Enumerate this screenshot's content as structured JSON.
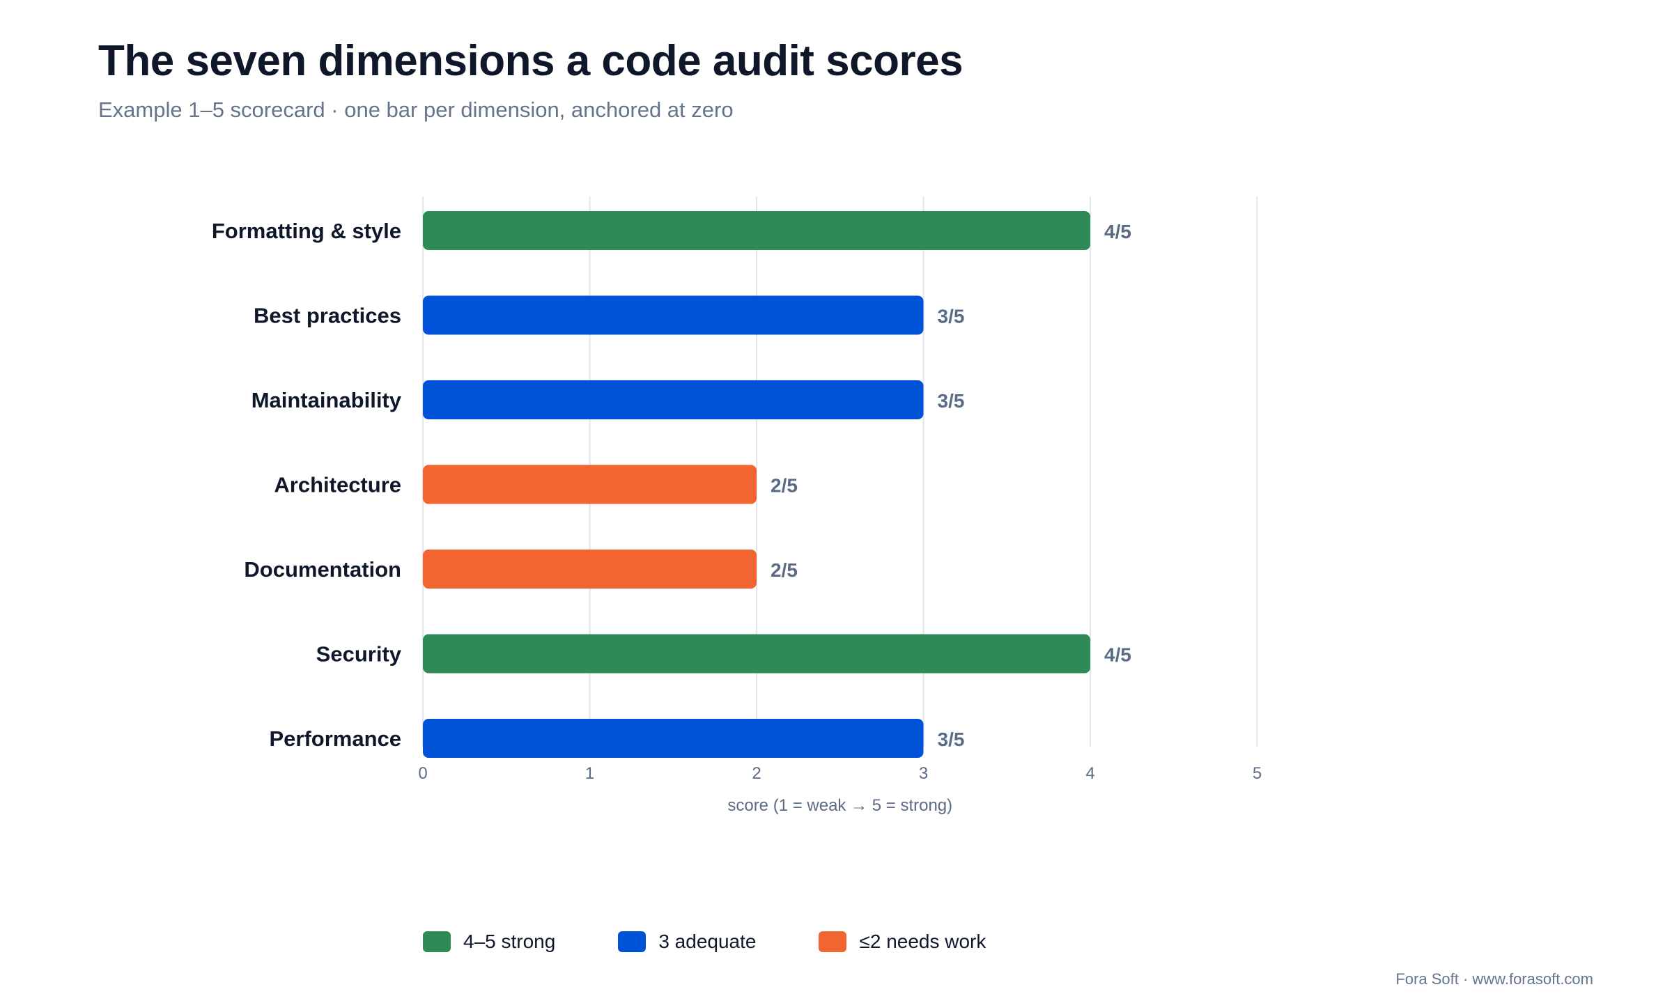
{
  "page": {
    "title": "The seven dimensions a code audit scores",
    "subtitle": "Example 1–5 scorecard · one bar per dimension, anchored at zero",
    "footer": "Fora Soft · www.forasoft.com"
  },
  "legend": [
    {
      "label": "4–5 strong",
      "color": "#2e8b57"
    },
    {
      "label": "3 adequate",
      "color": "#0052d9"
    },
    {
      "label": "≤2 needs work",
      "color": "#f26430"
    }
  ],
  "chart_data": {
    "type": "bar",
    "orientation": "horizontal",
    "categories": [
      "Formatting & style",
      "Best practices",
      "Maintainability",
      "Architecture",
      "Documentation",
      "Security",
      "Performance"
    ],
    "values": [
      4,
      3,
      3,
      2,
      2,
      4,
      3
    ],
    "value_labels": [
      "4/5",
      "3/5",
      "3/5",
      "2/5",
      "2/5",
      "4/5",
      "3/5"
    ],
    "xlabel": "score (1 = weak → 5 = strong)",
    "ylabel": "",
    "xlim": [
      0,
      5
    ],
    "xticks": [
      "0",
      "1",
      "2",
      "3",
      "4",
      "5"
    ],
    "grid": "vertical",
    "legend_position": "bottom",
    "colors": {
      "strong": "#2e8b57",
      "adequate": "#0052d9",
      "needs_work": "#f26430",
      "grid": "#e2e5ec",
      "label_text": "#0f172a",
      "value_text": "#5b6b85",
      "axis_text": "#5b6b85"
    }
  }
}
